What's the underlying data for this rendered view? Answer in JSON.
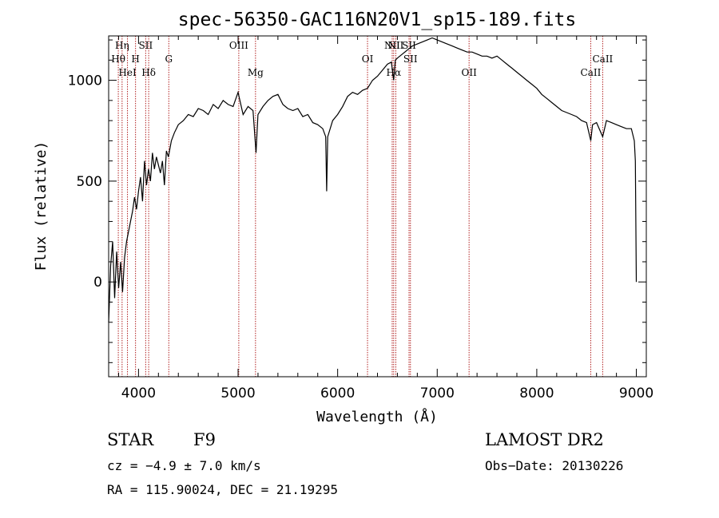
{
  "chart_data": {
    "type": "line",
    "title": "spec-56350-GAC116N20V1_sp15-189.fits",
    "xlabel": "Wavelength (Å)",
    "ylabel": "Flux (relative)",
    "xlim": [
      3700,
      9100
    ],
    "ylim": [
      -470,
      1220
    ],
    "xticks": [
      {
        "value": 4000,
        "label": "4000"
      },
      {
        "value": 5000,
        "label": "5000"
      },
      {
        "value": 6000,
        "label": "6000"
      },
      {
        "value": 7000,
        "label": "7000"
      },
      {
        "value": 8000,
        "label": "8000"
      },
      {
        "value": 9000,
        "label": "9000"
      }
    ],
    "yticks": [
      {
        "value": 0,
        "label": "0"
      },
      {
        "value": 500,
        "label": "500"
      },
      {
        "value": 1000,
        "label": "1000"
      }
    ],
    "grid": false,
    "line_color": "#000000",
    "marker_color": "#b22222",
    "series": [
      {
        "x": [
          3700,
          3720,
          3740,
          3760,
          3780,
          3800,
          3820,
          3840,
          3860,
          3880,
          3900,
          3920,
          3940,
          3960,
          3980,
          4000,
          4020,
          4040,
          4060,
          4080,
          4100,
          4120,
          4140,
          4160,
          4180,
          4200,
          4220,
          4240,
          4260,
          4280,
          4300,
          4330,
          4360,
          4400,
          4450,
          4500,
          4550,
          4600,
          4650,
          4700,
          4750,
          4800,
          4850,
          4900,
          4950,
          5000,
          5050,
          5100,
          5150,
          5180,
          5200,
          5250,
          5300,
          5350,
          5400,
          5450,
          5500,
          5550,
          5600,
          5650,
          5700,
          5750,
          5800,
          5850,
          5880,
          5890,
          5900,
          5950,
          6000,
          6050,
          6100,
          6150,
          6200,
          6250,
          6300,
          6350,
          6400,
          6450,
          6500,
          6540,
          6563,
          6580,
          6600,
          6650,
          6700,
          6750,
          6800,
          6850,
          6900,
          6950,
          7000,
          7050,
          7100,
          7150,
          7200,
          7250,
          7300,
          7350,
          7400,
          7450,
          7500,
          7550,
          7600,
          7650,
          7700,
          7750,
          7800,
          7850,
          7900,
          7950,
          8000,
          8050,
          8100,
          8150,
          8200,
          8250,
          8300,
          8350,
          8400,
          8450,
          8500,
          8542,
          8560,
          8600,
          8662,
          8700,
          8750,
          8800,
          8850,
          8900,
          8950,
          8980,
          8990,
          9000
        ],
        "y": [
          -200,
          80,
          200,
          -80,
          150,
          -30,
          100,
          -50,
          120,
          200,
          250,
          300,
          350,
          420,
          360,
          450,
          520,
          400,
          600,
          480,
          560,
          500,
          640,
          560,
          620,
          580,
          540,
          600,
          480,
          650,
          620,
          700,
          740,
          780,
          800,
          830,
          820,
          860,
          850,
          830,
          880,
          860,
          900,
          880,
          870,
          940,
          830,
          870,
          850,
          640,
          830,
          870,
          900,
          920,
          930,
          880,
          860,
          850,
          860,
          820,
          830,
          790,
          780,
          760,
          720,
          450,
          720,
          800,
          830,
          870,
          920,
          940,
          930,
          950,
          960,
          1000,
          1020,
          1050,
          1080,
          1090,
          1000,
          1100,
          1110,
          1130,
          1150,
          1170,
          1180,
          1190,
          1200,
          1210,
          1200,
          1190,
          1180,
          1170,
          1160,
          1150,
          1140,
          1140,
          1130,
          1120,
          1120,
          1110,
          1120,
          1100,
          1080,
          1060,
          1040,
          1020,
          1000,
          980,
          960,
          930,
          910,
          890,
          870,
          850,
          840,
          830,
          820,
          800,
          790,
          700,
          780,
          790,
          720,
          800,
          790,
          780,
          770,
          760,
          760,
          700,
          600,
          0
        ]
      }
    ],
    "line_markers": [
      {
        "wavelength": 3797,
        "label": "Hθ",
        "level": 2
      },
      {
        "wavelength": 3835,
        "label": "Hη",
        "level": 1
      },
      {
        "wavelength": 3889,
        "label": "HeI",
        "level": 3
      },
      {
        "wavelength": 3970,
        "label": "H",
        "level": 2
      },
      {
        "wavelength": 4072,
        "label": "SII",
        "level": 1
      },
      {
        "wavelength": 4102,
        "label": "Hδ",
        "level": 3
      },
      {
        "wavelength": 4304,
        "label": "G",
        "level": 2
      },
      {
        "wavelength": 5007,
        "label": "OIII",
        "level": 1
      },
      {
        "wavelength": 5175,
        "label": "Mg",
        "level": 3
      },
      {
        "wavelength": 6300,
        "label": "OI",
        "level": 2
      },
      {
        "wavelength": 6548,
        "label": "NII",
        "level": 1
      },
      {
        "wavelength": 6563,
        "label": "Hα",
        "level": 3
      },
      {
        "wavelength": 6584,
        "label": "NII",
        "level": 1
      },
      {
        "wavelength": 6717,
        "label": "SII",
        "level": 1
      },
      {
        "wavelength": 6731,
        "label": "SII",
        "level": 2
      },
      {
        "wavelength": 7320,
        "label": "OII",
        "level": 3
      },
      {
        "wavelength": 8542,
        "label": "CaII",
        "level": 3
      },
      {
        "wavelength": 8662,
        "label": "CaII",
        "level": 2
      }
    ]
  },
  "info": {
    "class_label": "STAR",
    "subclass_label": "F9",
    "survey": "LAMOST DR2",
    "cz": "cz = −4.9 ± 7.0 km/s",
    "obs_date": "Obs−Date: 20130226",
    "coords": "RA = 115.90024, DEC =  21.19295"
  }
}
